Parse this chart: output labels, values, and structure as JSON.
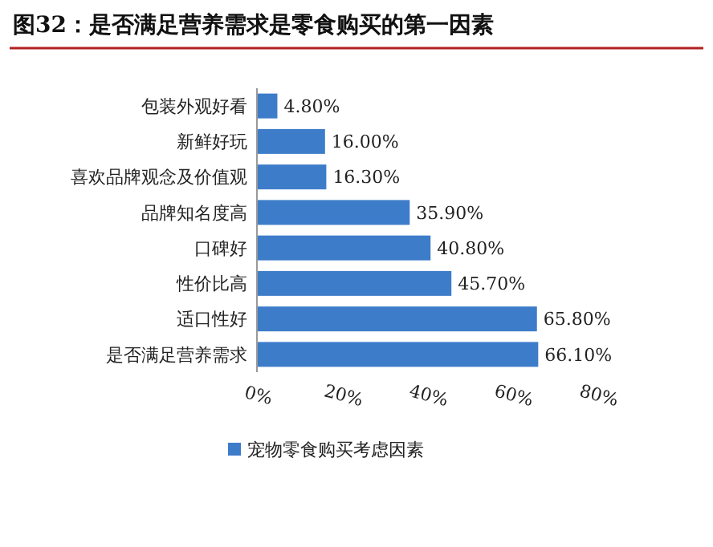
{
  "chart_data": {
    "type": "bar",
    "orientation": "horizontal",
    "title": "图32：是否满足营养需求是零食购买的第一因素",
    "categories": [
      "包装外观好看",
      "新鲜好玩",
      "喜欢品牌观念及价值观",
      "品牌知名度高",
      "口碑好",
      "性价比高",
      "适口性好",
      "是否满足营养需求"
    ],
    "series": [
      {
        "name": "宠物零食购买考虑因素",
        "color": "#3d7cc9",
        "values": [
          4.8,
          16.0,
          16.3,
          35.9,
          40.8,
          45.7,
          65.8,
          66.1
        ],
        "value_labels": [
          "4.80%",
          "16.00%",
          "16.30%",
          "35.90%",
          "40.80%",
          "45.70%",
          "65.80%",
          "66.10%"
        ]
      }
    ],
    "xlim": [
      0,
      80
    ],
    "xticks": [
      {
        "value": 0,
        "label": "0%"
      },
      {
        "value": 20,
        "label": "20%"
      },
      {
        "value": 40,
        "label": "40%"
      },
      {
        "value": 60,
        "label": "60%"
      },
      {
        "value": 80,
        "label": "80%"
      }
    ],
    "legend": "bottom",
    "grid": false
  }
}
